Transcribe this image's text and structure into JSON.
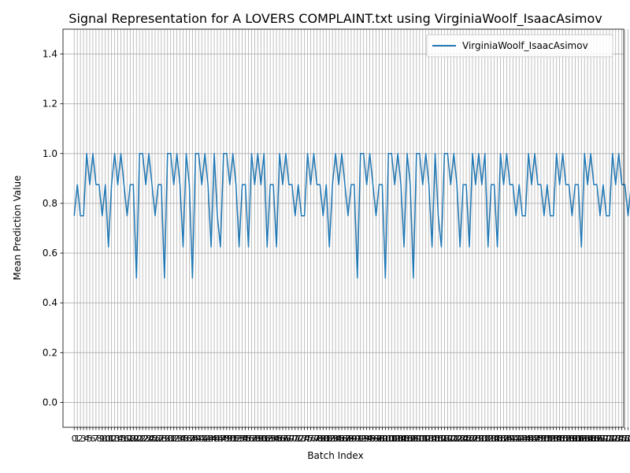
{
  "chart_data": {
    "type": "line",
    "title": "Signal Representation for A LOVERS COMPLAINT.txt using VirginiaWoolf_IsaacAsimov",
    "xlabel": "Batch Index",
    "ylabel": "Mean Prediction Value",
    "ylim": [
      -0.1,
      1.5
    ],
    "xlim": [
      -3.6,
      176.6
    ],
    "grid": true,
    "legend_placement": "top-right",
    "yticks": [
      "0.0",
      "0.2",
      "0.4",
      "0.6",
      "0.8",
      "1.0",
      "1.2",
      "1.4"
    ],
    "series": [
      {
        "name": "VirginiaWoolf_IsaacAsimov",
        "color": "#1f77b4",
        "values": [
          0.75,
          0.875,
          0.75,
          0.75,
          1.0,
          0.875,
          1.0,
          0.875,
          0.875,
          0.75,
          0.875,
          0.625,
          0.875,
          1.0,
          0.875,
          1.0,
          0.875,
          0.75,
          0.875,
          0.875,
          0.5,
          1.0,
          1.0,
          0.875,
          1.0,
          0.875,
          0.75,
          0.875,
          0.875,
          0.5,
          1.0,
          1.0,
          0.875,
          1.0,
          0.875,
          0.625,
          1.0,
          0.875,
          0.5,
          1.0,
          1.0,
          0.875,
          1.0,
          0.875,
          0.625,
          1.0,
          0.75,
          0.625,
          1.0,
          1.0,
          0.875,
          1.0,
          0.875,
          0.625,
          0.875,
          0.875,
          0.625,
          1.0,
          0.875,
          1.0,
          0.875,
          1.0,
          0.625,
          0.875,
          0.875,
          0.625,
          1.0,
          0.875,
          1.0,
          0.875,
          0.875,
          0.75,
          0.875,
          0.75,
          0.75,
          1.0,
          0.875,
          1.0,
          0.875,
          0.875,
          0.75,
          0.875,
          0.625,
          0.875,
          1.0,
          0.875,
          1.0,
          0.875,
          0.75,
          0.875,
          0.875,
          0.5,
          1.0,
          1.0,
          0.875,
          1.0,
          0.875,
          0.75,
          0.875,
          0.875,
          0.5,
          1.0,
          1.0,
          0.875,
          1.0,
          0.875,
          0.625,
          1.0,
          0.875,
          0.5,
          1.0,
          1.0,
          0.875,
          1.0,
          0.875,
          0.625,
          1.0,
          0.75,
          0.625,
          1.0,
          1.0,
          0.875,
          1.0,
          0.875,
          0.625,
          0.875,
          0.875,
          0.625,
          1.0,
          0.875,
          1.0,
          0.875,
          1.0,
          0.625,
          0.875,
          0.875,
          0.625,
          1.0,
          0.875,
          1.0,
          0.875,
          0.875,
          0.75,
          0.875,
          0.75,
          0.75,
          1.0,
          0.875,
          1.0,
          0.875,
          0.875,
          0.75,
          0.875,
          0.75,
          0.75,
          1.0,
          0.875,
          1.0,
          0.875,
          0.875,
          0.75,
          0.875,
          0.875,
          0.625,
          1.0,
          0.875,
          1.0,
          0.875,
          0.875,
          0.75,
          0.875,
          0.75,
          0.75,
          1.0,
          0.875,
          1.0,
          0.875,
          0.875,
          0.75,
          0.875,
          1.0
        ]
      }
    ]
  }
}
